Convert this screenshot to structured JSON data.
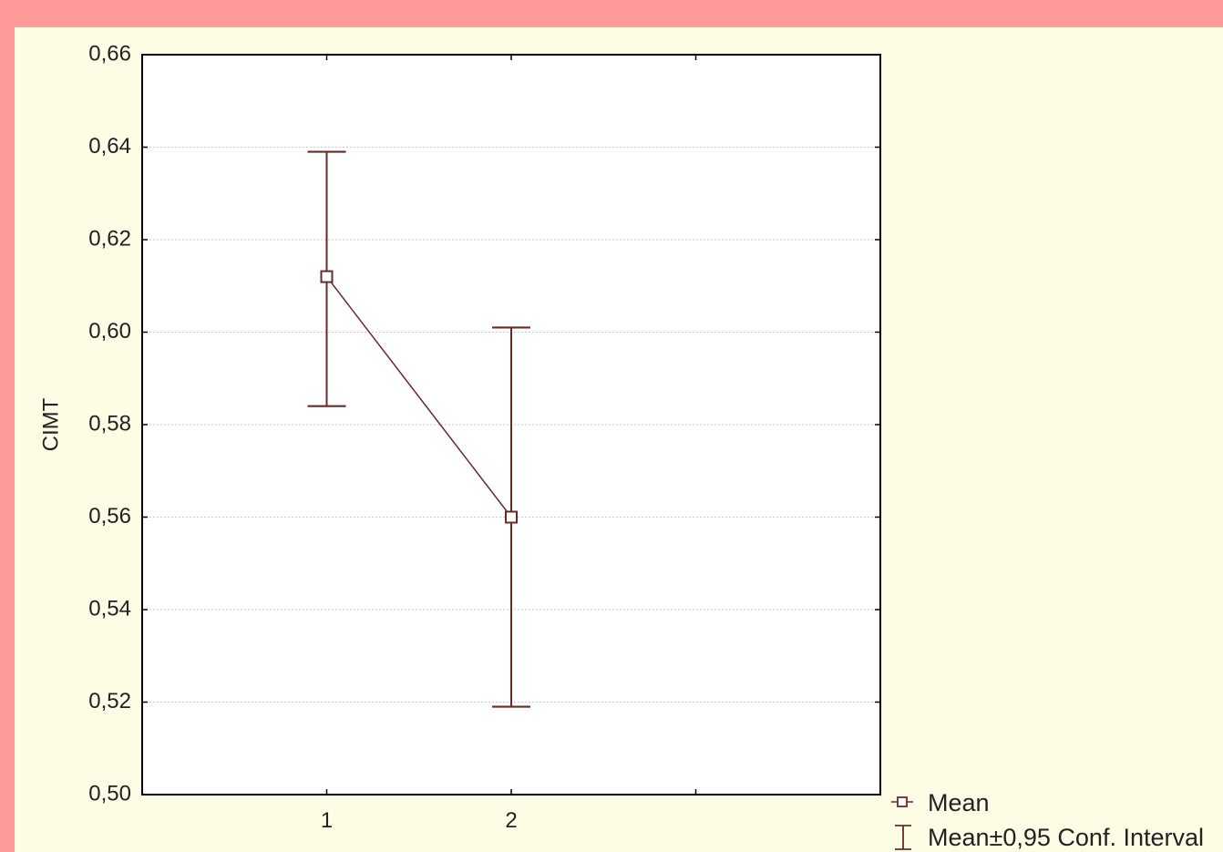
{
  "colors": {
    "frame_background": "#ff9a9a",
    "panel_background": "#fdfde6",
    "plot_background": "#ffffff",
    "series_color": "#6b2a2a",
    "grid_color": "#c8c8c8"
  },
  "chart_data": {
    "type": "line",
    "ylabel": "CIMT",
    "xlabel": "",
    "categories": [
      "1",
      "2"
    ],
    "x_range": [
      0,
      4
    ],
    "ylim": [
      0.5,
      0.66
    ],
    "yticks": [
      "0,50",
      "0,52",
      "0,54",
      "0,56",
      "0,58",
      "0,60",
      "0,62",
      "0,64",
      "0,66"
    ],
    "ytick_values": [
      0.5,
      0.52,
      0.54,
      0.56,
      0.58,
      0.6,
      0.62,
      0.64,
      0.66
    ],
    "grid": true,
    "series": [
      {
        "name": "Mean",
        "marker": "square",
        "values": [
          0.612,
          0.56
        ],
        "ci_lower": [
          0.584,
          0.519
        ],
        "ci_upper": [
          0.639,
          0.601
        ]
      }
    ],
    "legend": {
      "placement": "bottom-right",
      "entries": [
        {
          "label": "Mean",
          "symbol": "square-marker"
        },
        {
          "label": "Mean±0,95 Conf. Interval",
          "symbol": "error-bar"
        }
      ]
    }
  }
}
